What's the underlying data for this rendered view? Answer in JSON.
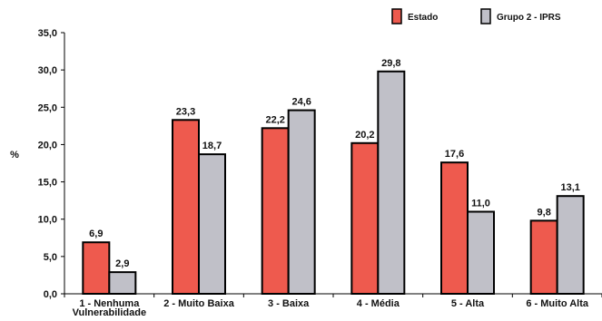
{
  "chart_data": {
    "type": "bar",
    "title": "",
    "xlabel": "",
    "ylabel": "%",
    "ylim": [
      0,
      35
    ],
    "yticks": [
      "0,0",
      "5,0",
      "10,0",
      "15,0",
      "20,0",
      "25,0",
      "30,0",
      "35,0"
    ],
    "categories": [
      "1 - Nenhuma Vulnerabilidade",
      "2 - Muito Baixa",
      "3 - Baixa",
      "4 - Média",
      "5 - Alta",
      "6 - Muito Alta"
    ],
    "series": [
      {
        "name": "Estado",
        "color": "#ee5a4e",
        "values": [
          6.9,
          23.3,
          22.2,
          20.2,
          17.6,
          9.8
        ],
        "labels": [
          "6,9",
          "23,3",
          "22,2",
          "20,2",
          "17,6",
          "9,8"
        ]
      },
      {
        "name": "Grupo 2 - IPRS",
        "color": "#c0c0c8",
        "values": [
          2.9,
          18.7,
          24.6,
          29.8,
          11.0,
          13.1
        ],
        "labels": [
          "2,9",
          "18,7",
          "24,6",
          "29,8",
          "11,0",
          "13,1"
        ]
      }
    ],
    "grid": false,
    "legend_position": "top-right"
  }
}
